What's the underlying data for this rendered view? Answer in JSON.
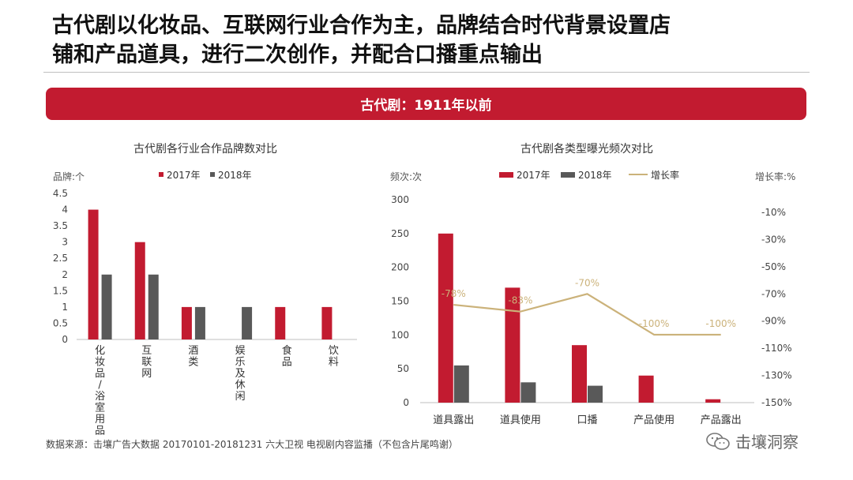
{
  "header": {
    "headline_line1": "古代剧以化妆品、互联网行业合作为主，品牌结合时代背景设置店",
    "headline_line2": "铺和产品道具，进行二次创作，并配合口播重点输出"
  },
  "banner": {
    "text": "古代剧：1911年以前"
  },
  "colors": {
    "red": "#c21b30",
    "gray": "#595959",
    "gold": "#cbb27a",
    "axis": "#bfbfbf"
  },
  "chart_data": [
    {
      "type": "bar",
      "title": "古代剧各行业合作品牌数对比",
      "ylabel": "品牌:个",
      "ylim": [
        0,
        4.5
      ],
      "yticks": [
        "4.5",
        "4",
        "3.5",
        "3",
        "2.5",
        "2",
        "1.5",
        "1",
        "0.5",
        "0"
      ],
      "categories": [
        "化妆品/浴室用品",
        "互联网",
        "酒类",
        "娱乐及休闲",
        "食品",
        "饮料"
      ],
      "series": [
        {
          "name": "2017年",
          "values": [
            4,
            3,
            1,
            0,
            1,
            1
          ]
        },
        {
          "name": "2018年",
          "values": [
            2,
            2,
            1,
            1,
            0,
            0
          ]
        }
      ]
    },
    {
      "type": "bar+line",
      "title": "古代剧各类型曝光频次对比",
      "ylabel": "频次:次",
      "y2label": "增长率:%",
      "ylim": [
        0,
        300
      ],
      "yticks": [
        "300",
        "250",
        "200",
        "150",
        "100",
        "50",
        "0"
      ],
      "y2lim": [
        -150,
        -10
      ],
      "y2ticks": [
        "-10%",
        "-30%",
        "-50%",
        "-70%",
        "-90%",
        "-110%",
        "-130%",
        "-150%"
      ],
      "categories": [
        "道具露出",
        "道具使用",
        "口播",
        "产品使用",
        "产品露出"
      ],
      "series": [
        {
          "name": "2017年",
          "values": [
            250,
            170,
            85,
            40,
            5
          ]
        },
        {
          "name": "2018年",
          "values": [
            55,
            30,
            25,
            0,
            0
          ]
        }
      ],
      "line": {
        "name": "增长率",
        "values": [
          -78,
          -83,
          -70,
          -100,
          -100
        ],
        "labels": [
          "-78%",
          "-83%",
          "-70%",
          "-100%",
          "-100%"
        ]
      }
    }
  ],
  "footer": {
    "source": "数据来源：击壤广告大数据 20170101-20181231 六大卫视 电视剧内容监播（不包含片尾鸣谢）",
    "watermark": "击壤洞察"
  }
}
